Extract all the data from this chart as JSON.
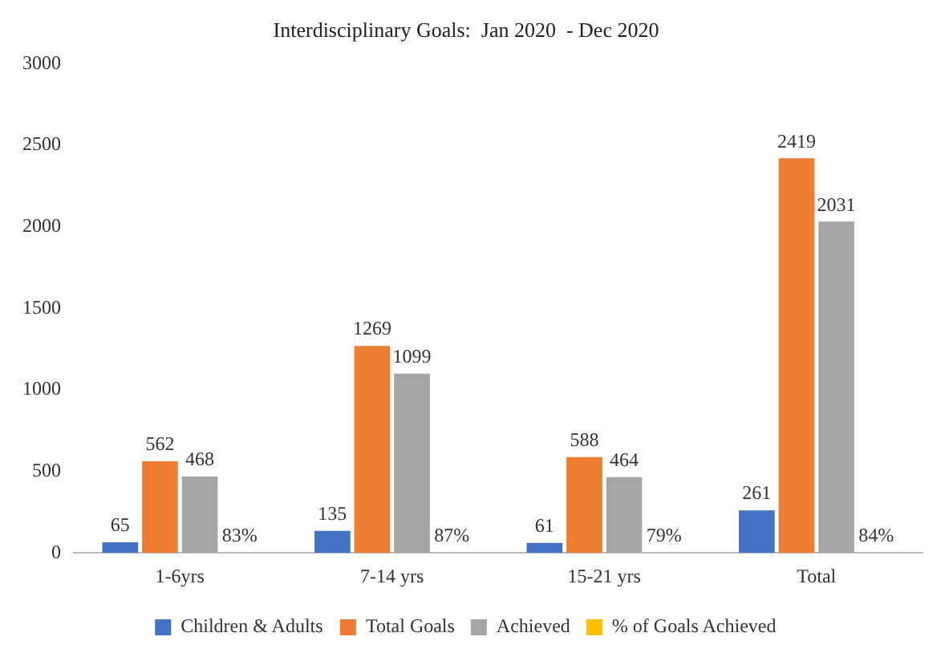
{
  "chart_data": {
    "type": "bar",
    "title": "Interdisciplinary Goals:  Jan 2020  - Dec 2020",
    "categories": [
      "1-6yrs",
      "7-14 yrs",
      "15-21 yrs",
      "Total"
    ],
    "series": [
      {
        "name": "Children & Adults",
        "color": "#4472c4",
        "values": [
          65,
          135,
          61,
          261
        ],
        "value_labels": [
          "65",
          "135",
          "61",
          "261"
        ]
      },
      {
        "name": "Total Goals",
        "color": "#ed7d31",
        "values": [
          562,
          1269,
          588,
          2419
        ],
        "value_labels": [
          "562",
          "1269",
          "588",
          "2419"
        ]
      },
      {
        "name": "Achieved",
        "color": "#a5a5a5",
        "values": [
          468,
          1099,
          464,
          2031
        ],
        "value_labels": [
          "468",
          "1099",
          "464",
          "2031"
        ]
      },
      {
        "name": "% of Goals Achieved",
        "color": "#ffc000",
        "values": [
          0.83,
          0.87,
          0.79,
          0.84
        ],
        "value_labels": [
          "83%",
          "87%",
          "79%",
          "84%"
        ]
      }
    ],
    "ylim": [
      0,
      3000
    ],
    "yticks": [
      0,
      500,
      1000,
      1500,
      2000,
      2500,
      3000
    ],
    "grid": false,
    "legend": "bottom"
  }
}
